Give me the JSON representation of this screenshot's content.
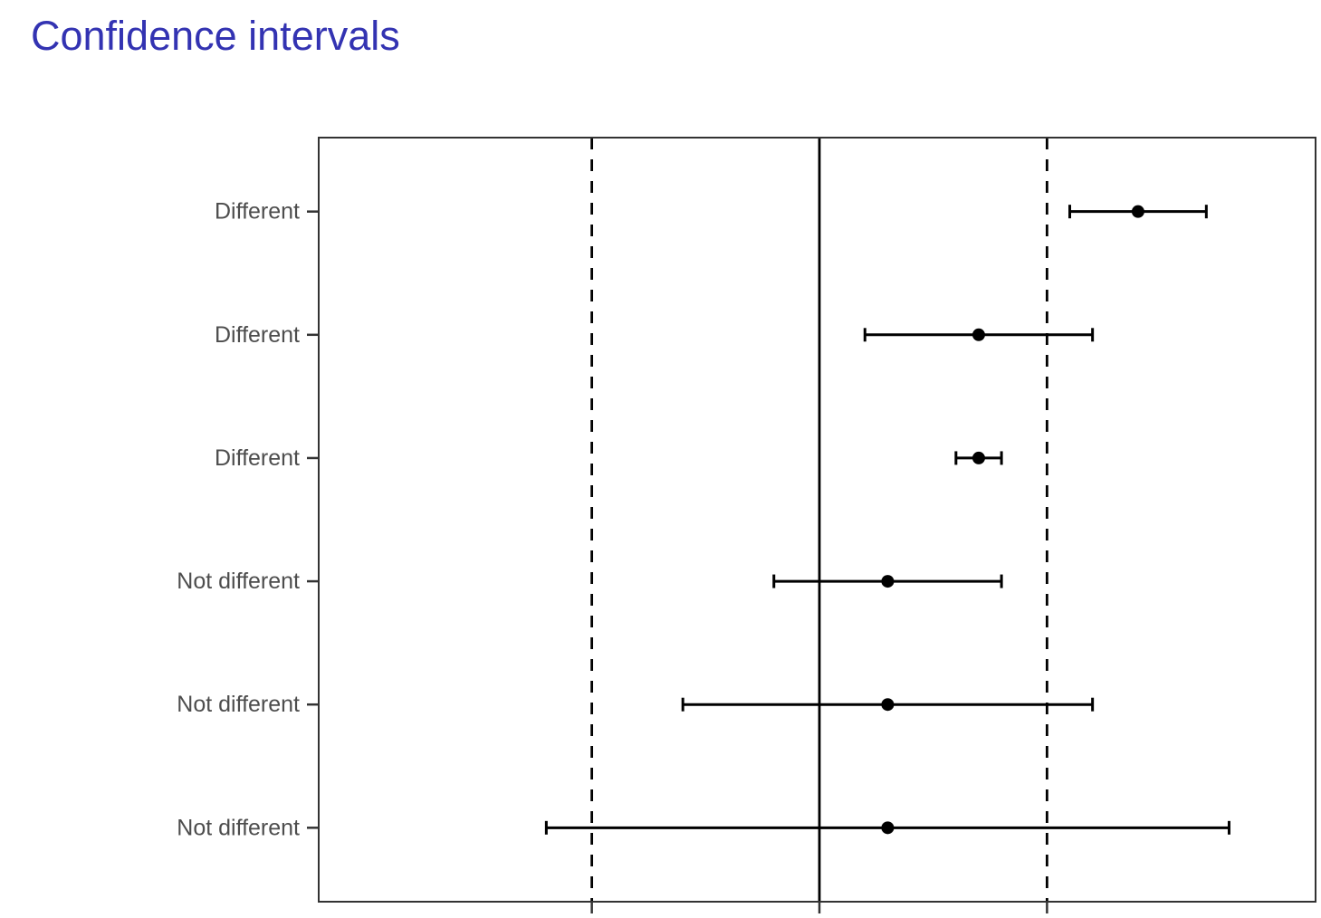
{
  "page": {
    "background": "#ffffff"
  },
  "header": {
    "title": "Confidence intervals",
    "color": "#3333b2"
  },
  "chart_data": {
    "type": "errorbar",
    "orientation": "horizontal",
    "title": "",
    "xlabel": "",
    "ylabel": "",
    "categories": [
      "Different",
      "Different",
      "Different",
      "Not different",
      "Not different",
      "Not different"
    ],
    "rows": [
      {
        "label": "Different",
        "estimate": 1.4,
        "lower": 1.1,
        "upper": 1.7
      },
      {
        "label": "Different",
        "estimate": 0.7,
        "lower": 0.2,
        "upper": 1.2
      },
      {
        "label": "Different",
        "estimate": 0.7,
        "lower": 0.6,
        "upper": 0.8
      },
      {
        "label": "Not different",
        "estimate": 0.3,
        "lower": -0.2,
        "upper": 0.8
      },
      {
        "label": "Not different",
        "estimate": 0.3,
        "lower": -0.6,
        "upper": 1.2
      },
      {
        "label": "Not different",
        "estimate": 0.3,
        "lower": -1.2,
        "upper": 1.8
      }
    ],
    "reference_lines": [
      {
        "x": 0,
        "style": "solid"
      },
      {
        "x": -1,
        "style": "dashed"
      },
      {
        "x": 1,
        "style": "dashed"
      }
    ],
    "x_axis_ticks": [
      -1,
      0,
      1
    ],
    "x_tick_labels_visible": false,
    "xlim": [
      -2.2,
      2.18
    ],
    "grid": false,
    "legend": false,
    "colors": {
      "point": "#000000",
      "interval": "#000000",
      "reference_line": "#000000",
      "axis_text": "#4d4d4d",
      "axis_tick": "#333333",
      "panel_border": "#333333",
      "panel_background": "#ffffff"
    }
  }
}
